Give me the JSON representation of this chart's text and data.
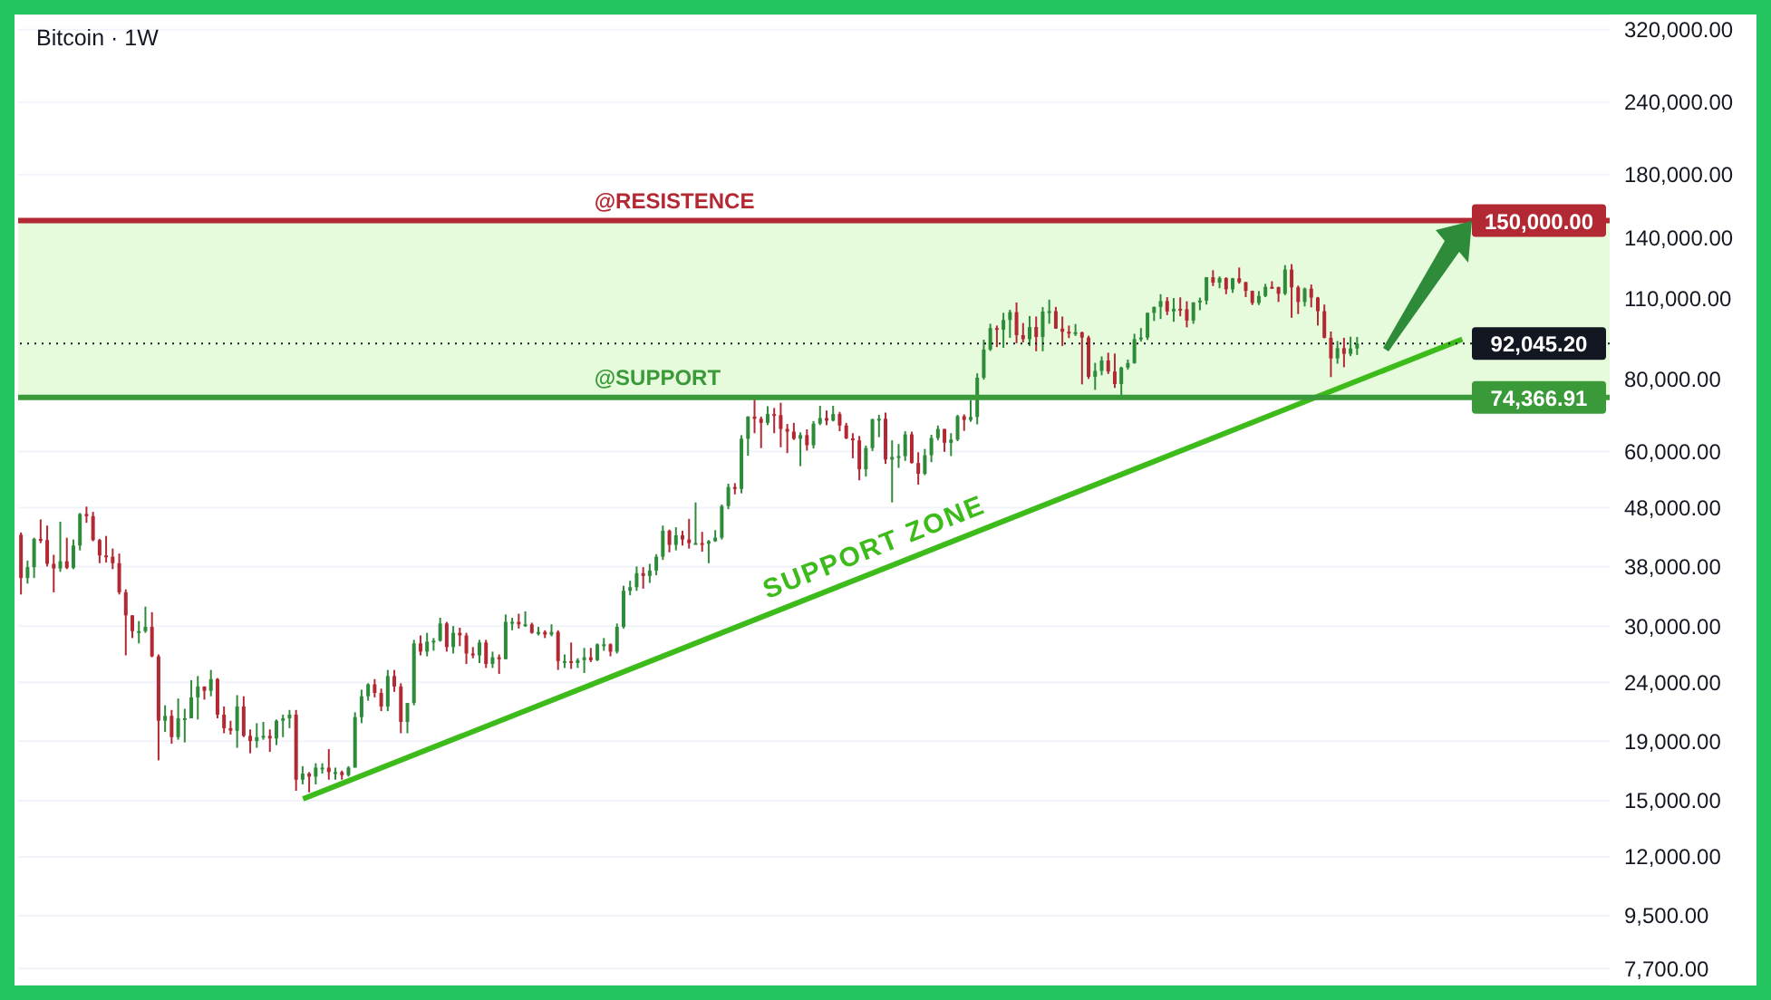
{
  "chart_data": {
    "type": "candlestick",
    "title": "Bitcoin · 1W",
    "categories": [
      null,
      null,
      null,
      null,
      null,
      null,
      null,
      null,
      null,
      null,
      null,
      null,
      null,
      null,
      null,
      null,
      null,
      null,
      null,
      null,
      null,
      null,
      null,
      null,
      null,
      null,
      null,
      null,
      null,
      null,
      null,
      null,
      null,
      null,
      null,
      null,
      null,
      null,
      null,
      null,
      null,
      null,
      null,
      null,
      null,
      null,
      null,
      null,
      null,
      null,
      null,
      null,
      null,
      null,
      null,
      null,
      null,
      null,
      null,
      null,
      null,
      null,
      null,
      null,
      null,
      null,
      null,
      null,
      null,
      null,
      null,
      null,
      null,
      null,
      null,
      null,
      null,
      null,
      null,
      null,
      null,
      null,
      null,
      null,
      null,
      null,
      null,
      null,
      null,
      null,
      null,
      null,
      null,
      null,
      null,
      null,
      null,
      null,
      null,
      null,
      null,
      null,
      null,
      null,
      null,
      null,
      null,
      null,
      null,
      null,
      null,
      null,
      null,
      null,
      null,
      null,
      null,
      null,
      null,
      null,
      null,
      null,
      null,
      null,
      null,
      null,
      null,
      null,
      null,
      null,
      null,
      null,
      null,
      null,
      null,
      null,
      null,
      null,
      null,
      null,
      null,
      null,
      null,
      null,
      null,
      null,
      null,
      null,
      null,
      null,
      null,
      null,
      null,
      null,
      null,
      null,
      null,
      null,
      null,
      null,
      null,
      null,
      null,
      null,
      null,
      null,
      null,
      null,
      null,
      null,
      null,
      null,
      null,
      null,
      null,
      null,
      null,
      null,
      null,
      null,
      null,
      null,
      null,
      null,
      null,
      null,
      null,
      null,
      null,
      null,
      null,
      null,
      null,
      null,
      null,
      null,
      null,
      null,
      null,
      null,
      null,
      null,
      null,
      null,
      null,
      null,
      null,
      null,
      null,
      null,
      null,
      null,
      null,
      null,
      null,
      null,
      null,
      null,
      null,
      null,
      null,
      null,
      null,
      null,
      null,
      null,
      null,
      null,
      null,
      null,
      null,
      null,
      null,
      null,
      null,
      null,
      null,
      null,
      null,
      null,
      null,
      null,
      null
    ],
    "ohlc": [
      [
        43100,
        43500,
        34000,
        36300
      ],
      [
        36300,
        38900,
        35500,
        37900
      ],
      [
        37900,
        42600,
        36300,
        42400
      ],
      [
        42400,
        45800,
        41700,
        42200
      ],
      [
        42200,
        44700,
        38000,
        38400
      ],
      [
        38400,
        39800,
        34300,
        37700
      ],
      [
        37700,
        45400,
        37200,
        38800
      ],
      [
        38800,
        42600,
        37600,
        37800
      ],
      [
        37800,
        42300,
        37600,
        41300
      ],
      [
        41300,
        47000,
        40500,
        46800
      ],
      [
        46800,
        48200,
        45200,
        46400
      ],
      [
        46400,
        47200,
        42000,
        42200
      ],
      [
        42200,
        42400,
        38500,
        39700
      ],
      [
        39700,
        42900,
        38600,
        39500
      ],
      [
        39500,
        40800,
        37600,
        38500
      ],
      [
        38500,
        40000,
        34000,
        34300
      ],
      [
        34300,
        34700,
        26700,
        31300
      ],
      [
        31300,
        31300,
        28600,
        29400
      ],
      [
        29400,
        30600,
        28000,
        29400
      ],
      [
        29400,
        32400,
        29200,
        29900
      ],
      [
        29900,
        31700,
        26500,
        26600
      ],
      [
        26600,
        26800,
        17600,
        20600
      ],
      [
        20600,
        21900,
        19700,
        21000
      ],
      [
        21000,
        21500,
        18800,
        19300
      ],
      [
        19300,
        22500,
        19100,
        20800
      ],
      [
        20800,
        21600,
        18900,
        20800
      ],
      [
        20800,
        24200,
        20800,
        22600
      ],
      [
        22600,
        24600,
        20700,
        23600
      ],
      [
        23600,
        23600,
        22400,
        23200
      ],
      [
        23200,
        25200,
        22700,
        24300
      ],
      [
        24300,
        24400,
        20800,
        21100
      ],
      [
        21100,
        21800,
        19600,
        20000
      ],
      [
        20000,
        20600,
        19500,
        19800
      ],
      [
        19800,
        22800,
        18500,
        21800
      ],
      [
        21800,
        22700,
        19300,
        19400
      ],
      [
        19400,
        19900,
        18100,
        19000
      ],
      [
        19000,
        20400,
        18500,
        19300
      ],
      [
        19300,
        20500,
        19100,
        19400
      ],
      [
        19400,
        19900,
        18200,
        19200
      ],
      [
        19200,
        20700,
        18700,
        20600
      ],
      [
        20600,
        21100,
        19300,
        20800
      ],
      [
        20800,
        21500,
        20000,
        21100
      ],
      [
        21100,
        21500,
        15600,
        16300
      ],
      [
        16300,
        17200,
        16000,
        16700
      ],
      [
        16700,
        16800,
        15500,
        16500
      ],
      [
        16500,
        17400,
        16000,
        17100
      ],
      [
        17100,
        17400,
        16700,
        17100
      ],
      [
        17100,
        18400,
        16300,
        16800
      ],
      [
        16800,
        17100,
        16300,
        16800
      ],
      [
        16800,
        16900,
        16300,
        16600
      ],
      [
        16600,
        17200,
        16500,
        17100
      ],
      [
        17100,
        21300,
        17100,
        20900
      ],
      [
        20900,
        23300,
        20400,
        22700
      ],
      [
        22700,
        23900,
        22300,
        23800
      ],
      [
        23800,
        24300,
        22600,
        23000
      ],
      [
        23000,
        23400,
        21400,
        21800
      ],
      [
        21800,
        25200,
        21400,
        24600
      ],
      [
        24600,
        25200,
        23100,
        23600
      ],
      [
        23600,
        23900,
        19600,
        20500
      ],
      [
        20500,
        22100,
        19600,
        22100
      ],
      [
        22100,
        28400,
        21900,
        28000
      ],
      [
        28000,
        28900,
        26700,
        27100
      ],
      [
        27100,
        29200,
        26600,
        28200
      ],
      [
        28200,
        28600,
        27200,
        28300
      ],
      [
        28300,
        31000,
        28200,
        30300
      ],
      [
        30300,
        30500,
        27100,
        27600
      ],
      [
        27600,
        30000,
        26900,
        29200
      ],
      [
        29200,
        29800,
        27700,
        28900
      ],
      [
        28900,
        29200,
        25800,
        26900
      ],
      [
        26900,
        27600,
        26400,
        26700
      ],
      [
        26700,
        28400,
        25900,
        28100
      ],
      [
        28100,
        28400,
        25400,
        25800
      ],
      [
        25800,
        27100,
        25400,
        26500
      ],
      [
        26500,
        26800,
        24800,
        26300
      ],
      [
        26300,
        31400,
        26300,
        30500
      ],
      [
        30500,
        31000,
        29500,
        30500
      ],
      [
        30500,
        31500,
        29700,
        30200
      ],
      [
        30200,
        31800,
        29900,
        30200
      ],
      [
        30200,
        30400,
        29100,
        29200
      ],
      [
        29200,
        29900,
        28900,
        29300
      ],
      [
        29300,
        29500,
        28600,
        29000
      ],
      [
        29000,
        30200,
        28800,
        29300
      ],
      [
        29300,
        29500,
        25200,
        26100
      ],
      [
        26100,
        26800,
        25400,
        26100
      ],
      [
        26100,
        28100,
        25300,
        25900
      ],
      [
        25900,
        26400,
        25400,
        26200
      ],
      [
        26200,
        27500,
        24900,
        26500
      ],
      [
        26500,
        27500,
        26000,
        26200
      ],
      [
        26200,
        28000,
        26100,
        27900
      ],
      [
        27900,
        28600,
        27200,
        27900
      ],
      [
        27900,
        28000,
        26600,
        27100
      ],
      [
        27100,
        30300,
        26900,
        29900
      ],
      [
        29900,
        35200,
        29700,
        34500
      ],
      [
        34500,
        35900,
        33900,
        35000
      ],
      [
        35000,
        38000,
        34500,
        37000
      ],
      [
        37000,
        37900,
        34800,
        36600
      ],
      [
        36600,
        38400,
        35600,
        37400
      ],
      [
        37400,
        39900,
        36700,
        39500
      ],
      [
        39500,
        44700,
        39000,
        43800
      ],
      [
        43800,
        44000,
        40200,
        41400
      ],
      [
        41400,
        44400,
        40500,
        43000
      ],
      [
        43000,
        43800,
        41300,
        42300
      ],
      [
        42300,
        45900,
        40800,
        41700
      ],
      [
        41700,
        49000,
        41500,
        41700
      ],
      [
        41700,
        43600,
        40300,
        41600
      ],
      [
        41600,
        42200,
        38500,
        42000
      ],
      [
        42000,
        43900,
        41900,
        42600
      ],
      [
        42600,
        48600,
        42300,
        48300
      ],
      [
        48300,
        52800,
        47700,
        52100
      ],
      [
        52100,
        52900,
        50600,
        51700
      ],
      [
        51700,
        64000,
        50800,
        63100
      ],
      [
        63100,
        69000,
        59000,
        68900
      ],
      [
        68900,
        73800,
        64500,
        68300
      ],
      [
        68300,
        68900,
        60800,
        67200
      ],
      [
        67200,
        71800,
        66600,
        69600
      ],
      [
        69600,
        71300,
        64500,
        69300
      ],
      [
        69300,
        72800,
        61000,
        65600
      ],
      [
        65600,
        66900,
        59600,
        64900
      ],
      [
        64900,
        67200,
        62800,
        63100
      ],
      [
        63100,
        64700,
        56600,
        64000
      ],
      [
        64000,
        65500,
        60200,
        61500
      ],
      [
        61500,
        67700,
        60700,
        67000
      ],
      [
        67000,
        71900,
        66600,
        68500
      ],
      [
        68500,
        70600,
        66600,
        67800
      ],
      [
        67800,
        71900,
        67600,
        69600
      ],
      [
        69600,
        70200,
        65000,
        66500
      ],
      [
        66500,
        67200,
        63000,
        63200
      ],
      [
        63200,
        64500,
        58400,
        62700
      ],
      [
        62700,
        63800,
        53500,
        55900
      ],
      [
        55900,
        61400,
        54300,
        60800
      ],
      [
        60800,
        68300,
        60100,
        68200
      ],
      [
        68200,
        69400,
        63500,
        68300
      ],
      [
        68300,
        70000,
        57100,
        58100
      ],
      [
        58100,
        62700,
        49000,
        58700
      ],
      [
        58700,
        61800,
        56200,
        58900
      ],
      [
        58900,
        65000,
        57800,
        64200
      ],
      [
        64200,
        64900,
        57200,
        57300
      ],
      [
        57300,
        59800,
        52600,
        54900
      ],
      [
        54900,
        60600,
        54600,
        59100
      ],
      [
        59100,
        64100,
        57500,
        63300
      ],
      [
        63300,
        66500,
        62700,
        65600
      ],
      [
        65600,
        65600,
        59900,
        62100
      ],
      [
        62100,
        64500,
        58900,
        62900
      ],
      [
        62900,
        69400,
        62500,
        69000
      ],
      [
        69000,
        69500,
        65100,
        68000
      ],
      [
        68000,
        73600,
        67500,
        68800
      ],
      [
        68800,
        81800,
        66800,
        80400
      ],
      [
        80400,
        93500,
        79800,
        89900
      ],
      [
        89900,
        99600,
        89400,
        97900
      ],
      [
        97900,
        98900,
        90800,
        97300
      ],
      [
        97300,
        104000,
        90500,
        101100
      ],
      [
        101100,
        105300,
        94200,
        104300
      ],
      [
        104300,
        108400,
        92200,
        95200
      ],
      [
        95200,
        99900,
        92500,
        93700
      ],
      [
        93700,
        102700,
        91200,
        98300
      ],
      [
        98300,
        102500,
        89300,
        94500
      ],
      [
        94500,
        106400,
        89300,
        104500
      ],
      [
        104500,
        109600,
        99600,
        104700
      ],
      [
        104700,
        106500,
        97600,
        97700
      ],
      [
        97700,
        102500,
        91200,
        96500
      ],
      [
        96500,
        98900,
        94100,
        96100
      ],
      [
        96100,
        99500,
        94900,
        96300
      ],
      [
        96300,
        96500,
        78300,
        94300
      ],
      [
        94300,
        95000,
        80000,
        80700
      ],
      [
        80700,
        85300,
        76600,
        82600
      ],
      [
        82600,
        87500,
        81200,
        86100
      ],
      [
        86100,
        88800,
        81600,
        82400
      ],
      [
        82400,
        88500,
        77200,
        78400
      ],
      [
        78400,
        84000,
        74500,
        83700
      ],
      [
        83700,
        86400,
        83000,
        85200
      ],
      [
        85200,
        95700,
        85000,
        93700
      ],
      [
        93700,
        97900,
        92800,
        94300
      ],
      [
        94300,
        104100,
        93400,
        104000
      ],
      [
        104000,
        106600,
        100700,
        106500
      ],
      [
        106500,
        112000,
        101500,
        109000
      ],
      [
        109000,
        110700,
        103100,
        104600
      ],
      [
        104600,
        110300,
        100400,
        105700
      ],
      [
        105700,
        110600,
        102600,
        105500
      ],
      [
        105500,
        108900,
        98200,
        100900
      ],
      [
        100900,
        108500,
        99600,
        108400
      ],
      [
        108400,
        110500,
        105100,
        109200
      ],
      [
        109200,
        119900,
        107500,
        119800
      ],
      [
        119800,
        123200,
        115700,
        117300
      ],
      [
        117300,
        120200,
        114700,
        119400
      ],
      [
        119400,
        119800,
        112000,
        114200
      ],
      [
        114200,
        119500,
        112600,
        119300
      ],
      [
        119300,
        124500,
        116800,
        117500
      ],
      [
        117500,
        117600,
        110700,
        113500
      ],
      [
        113500,
        113600,
        107300,
        108200
      ],
      [
        108200,
        113400,
        107300,
        111200
      ],
      [
        111200,
        116700,
        110700,
        115300
      ],
      [
        115300,
        117900,
        114400,
        115200
      ],
      [
        115200,
        115400,
        108600,
        112200
      ],
      [
        112200,
        125700,
        111600,
        123500
      ],
      [
        123500,
        126200,
        102000,
        115100
      ],
      [
        115100,
        115900,
        103500,
        108600
      ],
      [
        108600,
        115000,
        106700,
        114500
      ],
      [
        114500,
        116400,
        106300,
        110500
      ],
      [
        110500,
        110800,
        98900,
        104700
      ],
      [
        104700,
        107500,
        94000,
        94200
      ],
      [
        94200,
        96600,
        80600,
        86800
      ],
      [
        86800,
        93000,
        85000,
        90400
      ],
      [
        90400,
        94200,
        83800,
        88400
      ],
      [
        88400,
        94600,
        87600,
        90300
      ],
      [
        90300,
        94500,
        88000,
        92045.2
      ],
      null,
      null,
      null,
      null,
      null,
      null,
      null,
      null,
      null,
      null,
      null,
      null,
      null,
      null,
      null,
      null,
      null,
      null,
      null,
      null,
      null,
      null,
      null,
      null,
      null,
      null,
      null,
      null,
      null,
      null,
      null,
      null,
      null,
      null,
      null,
      null,
      null,
      null
    ],
    "series": [
      {
        "type": "line",
        "name": "SUPPORT ZONE",
        "color": "#3dbb1a",
        "values": [
          null,
          null,
          null,
          null,
          null,
          null,
          null,
          null,
          null,
          null,
          null,
          null,
          null,
          null,
          null,
          null,
          null,
          null,
          null,
          null,
          null,
          null,
          null,
          null,
          null,
          null,
          null,
          null,
          null,
          null,
          null,
          null,
          null,
          null,
          null,
          null,
          null,
          null,
          null,
          null,
          null,
          null,
          null,
          15100,
          null,
          null,
          null,
          null,
          null,
          null,
          null,
          null,
          null,
          null,
          null,
          null,
          null,
          null,
          null,
          null,
          null,
          null,
          null,
          null,
          null,
          null,
          null,
          null,
          null,
          null,
          null,
          null,
          null,
          null,
          null,
          null,
          null,
          null,
          null,
          null,
          null,
          null,
          null,
          null,
          null,
          null,
          null,
          null,
          null,
          null,
          null,
          null,
          null,
          null,
          null,
          null,
          null,
          null,
          null,
          null,
          null,
          null,
          null,
          null,
          null,
          null,
          null,
          null,
          null,
          null,
          null,
          null,
          null,
          null,
          null,
          null,
          null,
          null,
          null,
          null,
          null,
          null,
          null,
          null,
          null,
          null,
          null,
          null,
          null,
          null,
          null,
          null,
          null,
          null,
          null,
          null,
          null,
          null,
          null,
          null,
          null,
          null,
          null,
          null,
          null,
          null,
          null,
          null,
          null,
          null,
          null,
          null,
          null,
          null,
          null,
          null,
          null,
          null,
          null,
          null,
          null,
          null,
          null,
          null,
          null,
          null,
          null,
          null,
          null,
          null,
          null,
          null,
          null,
          null,
          null,
          null,
          null,
          null,
          null,
          null,
          null,
          null,
          null,
          null,
          null,
          null,
          null,
          null,
          null,
          null,
          null,
          null,
          null,
          null,
          null,
          null,
          null,
          null,
          null,
          null,
          null,
          null,
          null,
          null,
          null,
          null,
          null,
          null,
          null,
          null,
          null,
          null,
          null,
          null,
          null,
          null,
          null,
          null,
          null,
          null,
          93700,
          null,
          null,
          null,
          null,
          null,
          null,
          null,
          null,
          null,
          null,
          null,
          null,
          null,
          null,
          null,
          null,
          null,
          null,
          null,
          null,
          null,
          null
        ]
      }
    ],
    "ylim": [
      7200,
      340000
    ],
    "log": true,
    "yticks": [
      {
        "value": 7700,
        "label": "7,700.00"
      },
      {
        "value": 9500,
        "label": "9,500.00"
      },
      {
        "value": 12000,
        "label": "12,000.00"
      },
      {
        "value": 15000,
        "label": "15,000.00"
      },
      {
        "value": 19000,
        "label": "19,000.00"
      },
      {
        "value": 24000,
        "label": "24,000.00"
      },
      {
        "value": 30000,
        "label": "30,000.00"
      },
      {
        "value": 38000,
        "label": "38,000.00"
      },
      {
        "value": 48000,
        "label": "48,000.00"
      },
      {
        "value": 60000,
        "label": "60,000.00"
      },
      {
        "value": 80000,
        "label": "80,000.00"
      },
      {
        "value": 110000,
        "label": "110,000.00"
      },
      {
        "value": 140000,
        "label": "140,000.00"
      },
      {
        "value": 180000,
        "label": "180,000.00"
      },
      {
        "value": 240000,
        "label": "240,000.00"
      },
      {
        "value": 320000,
        "label": "320,000.00"
      }
    ],
    "grid": "y",
    "tick_labels": "y",
    "ref_lines": [
      {
        "axis": "y",
        "value": 150000,
        "label": "150,000.00",
        "color": "#b22833",
        "line_style": "solid"
      },
      {
        "axis": "y",
        "value": 74366.91,
        "label": "74,366.91",
        "color": "#3a9a3a",
        "line_style": "solid"
      },
      {
        "axis": "y",
        "value": 92045.2,
        "label": "92,045.20",
        "color": "#131722",
        "line_style": "dotted"
      }
    ],
    "annotations": [
      {
        "text": "@RESISTENCE",
        "y": 150000
      },
      {
        "text": "@SUPPORT",
        "y": 74366.91
      }
    ],
    "bands": [
      {
        "axis": "y",
        "from": 74366.91,
        "to": 150000,
        "color": "#e6fbdc"
      }
    ]
  }
}
